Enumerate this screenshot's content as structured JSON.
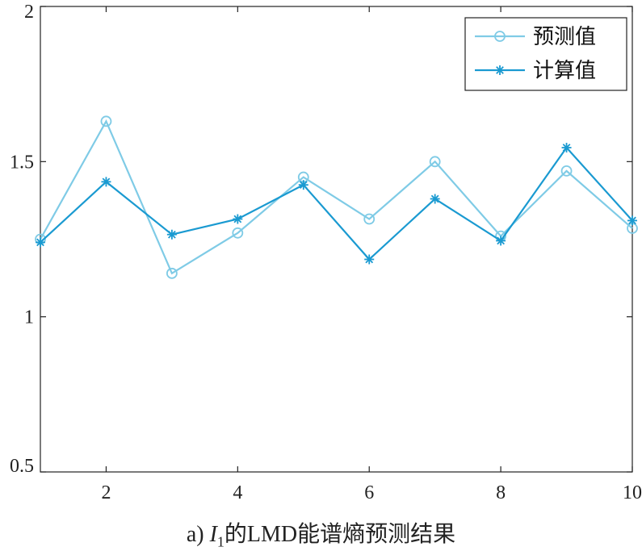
{
  "caption": {
    "prefix": "a) ",
    "var": "I",
    "sub": "1",
    "suffix": "的LMD能谱熵预测结果"
  },
  "chart_data": {
    "type": "line",
    "x": [
      1,
      2,
      3,
      4,
      5,
      6,
      7,
      8,
      9,
      10
    ],
    "xlim": [
      1,
      10
    ],
    "ylim": [
      0.5,
      2
    ],
    "xticks": [
      "2",
      "4",
      "6",
      "8",
      "10"
    ],
    "xtick_values": [
      2,
      4,
      6,
      8,
      10
    ],
    "yticks": [
      "0.5",
      "1",
      "1.5",
      "2"
    ],
    "ytick_values": [
      0.5,
      1,
      1.5,
      2
    ],
    "grid": false,
    "legend_position": "top-right",
    "series": [
      {
        "name": "预测值",
        "marker": "circle",
        "color": "#7fcbe6",
        "values": [
          1.25,
          1.63,
          1.14,
          1.27,
          1.45,
          1.315,
          1.5,
          1.26,
          1.47,
          1.285
        ]
      },
      {
        "name": "计算值",
        "marker": "asterisk",
        "color": "#1a9ad1",
        "values": [
          1.24,
          1.435,
          1.265,
          1.315,
          1.425,
          1.185,
          1.38,
          1.245,
          1.545,
          1.31
        ]
      }
    ]
  }
}
